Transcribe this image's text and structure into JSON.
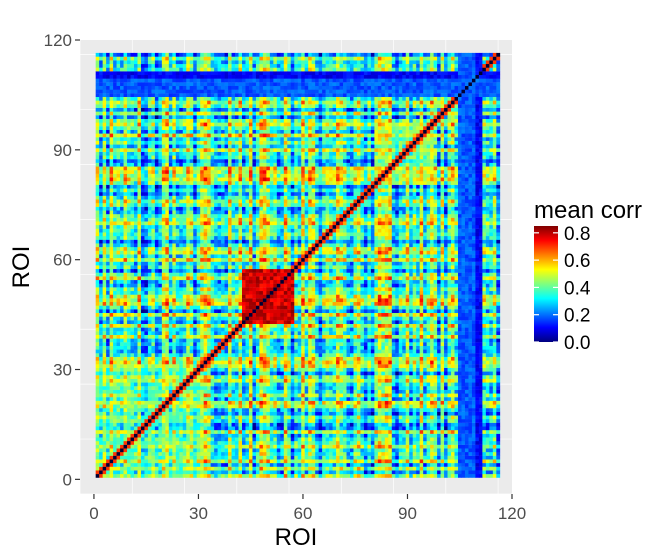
{
  "chart_data": {
    "type": "heatmap",
    "title": "",
    "xlabel": "ROI",
    "ylabel": "ROI",
    "n_rois": 116,
    "xlim": [
      -4,
      120
    ],
    "ylim": [
      -4,
      120
    ],
    "x_ticks": [
      0,
      30,
      60,
      90,
      120
    ],
    "y_ticks": [
      0,
      30,
      60,
      90,
      120
    ],
    "x_tick_labels": [
      "0",
      "30",
      "60",
      "90",
      "120"
    ],
    "y_tick_labels": [
      "0",
      "30",
      "60",
      "90",
      "120"
    ],
    "grid": true,
    "legend": {
      "title": "mean corr",
      "placement": "right",
      "range": [
        0.0,
        0.85
      ],
      "ticks": [
        0.0,
        0.2,
        0.4,
        0.6,
        0.8
      ],
      "tick_labels": [
        "0.0",
        "0.2",
        "0.4",
        "0.6",
        "0.8"
      ]
    },
    "diagonal_value": 1.0,
    "baseline_value": 0.38,
    "structure": {
      "high_block": {
        "roi_range": [
          42,
          56
        ],
        "value": 0.78
      },
      "low_bands": [
        {
          "roi_range": [
            109,
            110
          ],
          "value": 0.1
        },
        {
          "roi_range": [
            104,
            108
          ],
          "value": 0.18
        }
      ],
      "moderate_blocks": [
        {
          "roi_range": [
            97,
            108
          ],
          "value": 0.5
        },
        {
          "roi_range": [
            0,
            30
          ],
          "value": 0.48
        },
        {
          "roi_range": [
            80,
            96
          ],
          "value": 0.5
        }
      ]
    },
    "colors": {
      "scale": [
        "#00007F",
        "#0000FF",
        "#007FFF",
        "#00FFFF",
        "#7FFF7F",
        "#FFFF00",
        "#FF7F00",
        "#FF0000",
        "#7F0000"
      ],
      "panel_background": "#EBEBEB",
      "grid": "#FFFFFF"
    }
  }
}
